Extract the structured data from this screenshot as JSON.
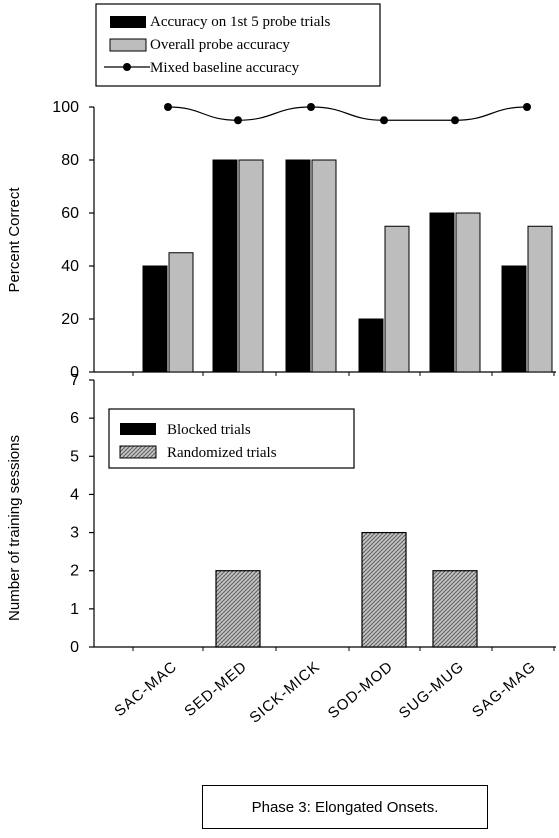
{
  "chart_data": [
    {
      "type": "bar",
      "categories": [
        "SAC-MAC",
        "SED-MED",
        "SICK-MICK",
        "SOD-MOD",
        "SUG-MUG",
        "SAG-MAG"
      ],
      "ylabel": "Percent  Correct",
      "ylim": [
        0,
        100
      ],
      "yticks": [
        "0",
        "20",
        "40",
        "60",
        "80",
        "100"
      ],
      "legend_position": "top-left",
      "series": [
        {
          "name": "Accuracy on 1st 5 probe trials",
          "values": [
            40,
            80,
            80,
            20,
            60,
            40
          ],
          "color": "#000000"
        },
        {
          "name": "Overall probe accuracy",
          "values": [
            45,
            80,
            80,
            55,
            60,
            55
          ],
          "color": "#bdbdbd"
        },
        {
          "name": "Mixed baseline accuracy",
          "values": [
            100,
            95,
            100,
            95,
            95,
            100
          ],
          "color": "#000000",
          "style": "line-markers"
        }
      ]
    },
    {
      "type": "bar",
      "categories": [
        "SAC-MAC",
        "SED-MED",
        "SICK-MICK",
        "SOD-MOD",
        "SUG-MUG",
        "SAG-MAG"
      ],
      "ylabel": "Number of training sessions",
      "ylim": [
        0,
        7
      ],
      "yticks": [
        "0",
        "1",
        "2",
        "3",
        "4",
        "5",
        "6",
        "7"
      ],
      "legend_position": "top-left",
      "series": [
        {
          "name": "Blocked trials",
          "values": [
            0,
            0,
            0,
            0,
            0,
            0
          ],
          "color": "#000000"
        },
        {
          "name": "Randomized trials",
          "values": [
            0,
            2,
            0,
            3,
            2,
            0
          ],
          "color": "#9a9a9a",
          "pattern": "crosshatch"
        }
      ]
    }
  ],
  "caption": "Phase 3: Elongated Onsets."
}
